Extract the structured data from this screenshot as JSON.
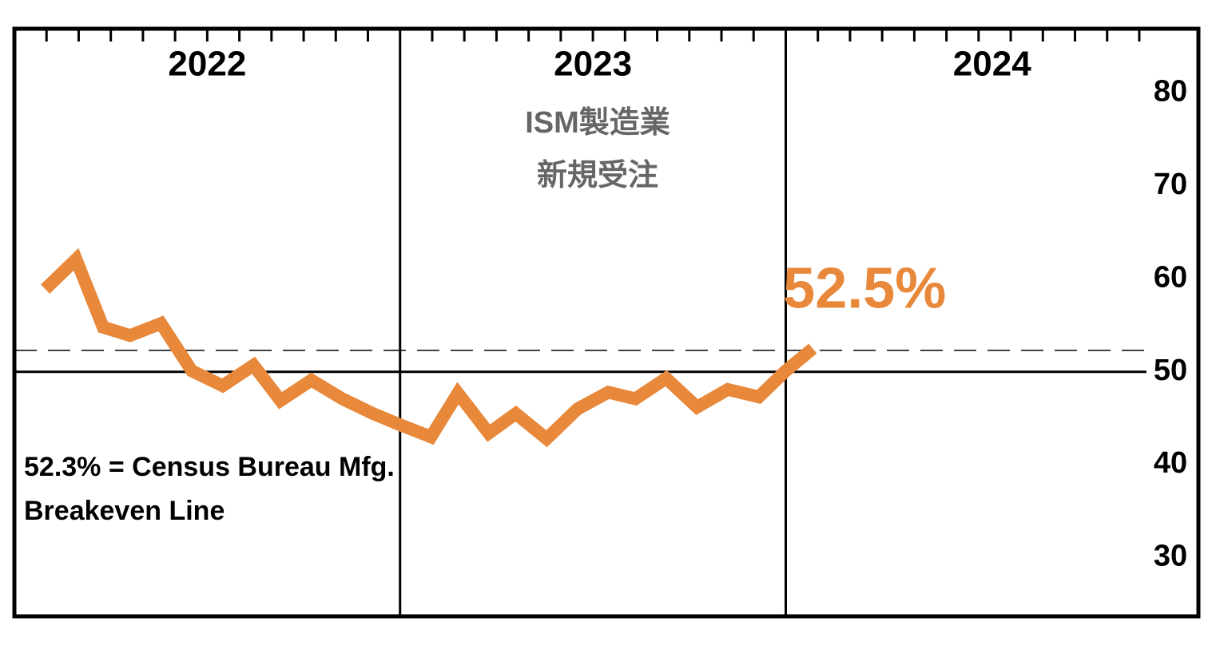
{
  "chart_data": {
    "type": "line",
    "title": [
      "ISM製造業",
      "新規受注"
    ],
    "categories": [
      "2022",
      "2023",
      "2024"
    ],
    "x": [
      2022.08,
      2022.16,
      2022.23,
      2022.3,
      2022.38,
      2022.46,
      2022.54,
      2022.62,
      2022.69,
      2022.77,
      2022.85,
      2022.93,
      2023.0,
      2023.08,
      2023.15,
      2023.23,
      2023.3,
      2023.38,
      2023.46,
      2023.54,
      2023.61,
      2023.69,
      2023.77,
      2023.85,
      2023.93,
      2024.0,
      2024.07
    ],
    "series": [
      {
        "name": null,
        "color": "#e8883a",
        "values": [
          58.9,
          62.1,
          54.8,
          53.9,
          55.2,
          50.1,
          48.5,
          50.7,
          46.9,
          49.1,
          47.1,
          45.5,
          44.3,
          43.0,
          47.7,
          43.4,
          45.5,
          42.8,
          46.0,
          47.8,
          47.1,
          49.3,
          46.2,
          48.1,
          47.3,
          50.1,
          52.5
        ],
        "value_labels": [
          null,
          null,
          null,
          null,
          null,
          null,
          null,
          null,
          null,
          null,
          null,
          null,
          null,
          null,
          null,
          null,
          null,
          null,
          null,
          null,
          null,
          null,
          null,
          null,
          null,
          null,
          "52.5%"
        ]
      }
    ],
    "xlim": [
      2022,
      2025.07
    ],
    "ylim": [
      23.7,
      86.9
    ],
    "yticks": [
      30,
      40,
      50,
      60,
      70,
      80
    ],
    "reference_lines": [
      {
        "value": 50,
        "style": "solid"
      },
      {
        "value": 52.3,
        "style": "dashed"
      }
    ],
    "annotation": [
      "52.3% = Census Bureau Mfg.",
      "Breakeven Line"
    ]
  }
}
